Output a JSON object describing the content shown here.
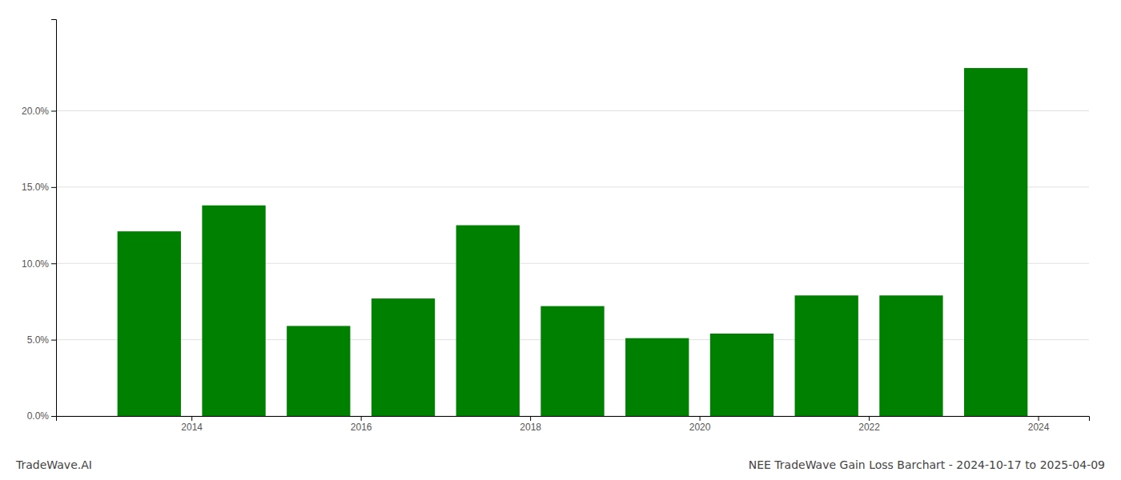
{
  "chart_data": {
    "type": "bar",
    "title": "NEE TradeWave Gain Loss Barchart - 2024-10-17 to 2025-04-09",
    "annotations": [
      "TradeWave.AI"
    ],
    "x": [
      2013,
      2014,
      2015,
      2016,
      2017,
      2018,
      2019,
      2020,
      2021,
      2022,
      2023
    ],
    "values": [
      0.121,
      0.138,
      0.059,
      0.077,
      0.125,
      0.072,
      0.051,
      0.054,
      0.079,
      0.079,
      0.228
    ],
    "color": "#008000",
    "xlim": [
      2012.4,
      2024.6
    ],
    "xticks": [
      2014,
      2016,
      2018,
      2020,
      2022,
      2024
    ],
    "ylim": [
      0,
      0.26
    ],
    "yticks": [
      {
        "value": 0.0,
        "label": "0.0%"
      },
      {
        "value": 0.05,
        "label": "5.0%"
      },
      {
        "value": 0.1,
        "label": "10.0%"
      },
      {
        "value": 0.15,
        "label": "15.0%"
      },
      {
        "value": 0.2,
        "label": "20.0%"
      }
    ],
    "grid": true
  }
}
